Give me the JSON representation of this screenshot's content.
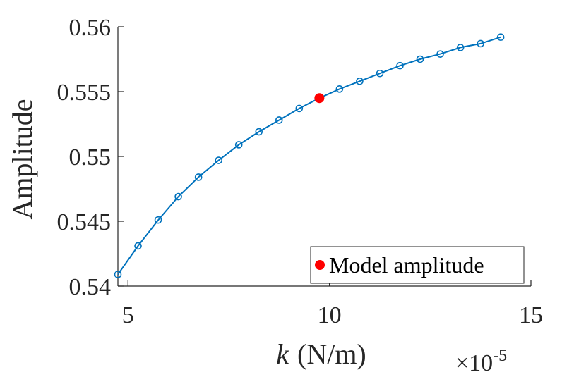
{
  "chart_data": {
    "type": "line",
    "xlabel_var": "k",
    "xlabel_unit": "(N/m)",
    "ylabel": "Amplitude",
    "x_multiplier": "×10",
    "x_exponent": "-5",
    "xlim": [
      4.75,
      15
    ],
    "ylim": [
      0.54,
      0.56
    ],
    "xticks": [
      5,
      10,
      15
    ],
    "xtick_labels": [
      "5",
      "10",
      "15"
    ],
    "yticks": [
      0.54,
      0.545,
      0.55,
      0.555,
      0.56
    ],
    "ytick_labels": [
      "0.54",
      "0.545",
      "0.55",
      "0.555",
      "0.56"
    ],
    "grid": false,
    "legend_position": "bottom-right",
    "series": [
      {
        "color": "#0072BD",
        "marker": "open-circle",
        "x": [
          4.75,
          5.25,
          5.75,
          6.25,
          6.75,
          7.25,
          7.75,
          8.25,
          8.75,
          9.25,
          9.75,
          10.25,
          10.75,
          11.25,
          11.75,
          12.25,
          12.75,
          13.25,
          13.75,
          14.25
        ],
        "y": [
          0.5409,
          0.5431,
          0.5451,
          0.5469,
          0.5484,
          0.5497,
          0.5509,
          0.5519,
          0.5528,
          0.5537,
          0.5545,
          0.5552,
          0.5558,
          0.5564,
          0.557,
          0.5575,
          0.5579,
          0.5584,
          0.5587,
          0.5592
        ]
      }
    ],
    "highlight": {
      "name": "Model amplitude",
      "color": "#FF0000",
      "x": 9.75,
      "y": 0.5545
    }
  }
}
